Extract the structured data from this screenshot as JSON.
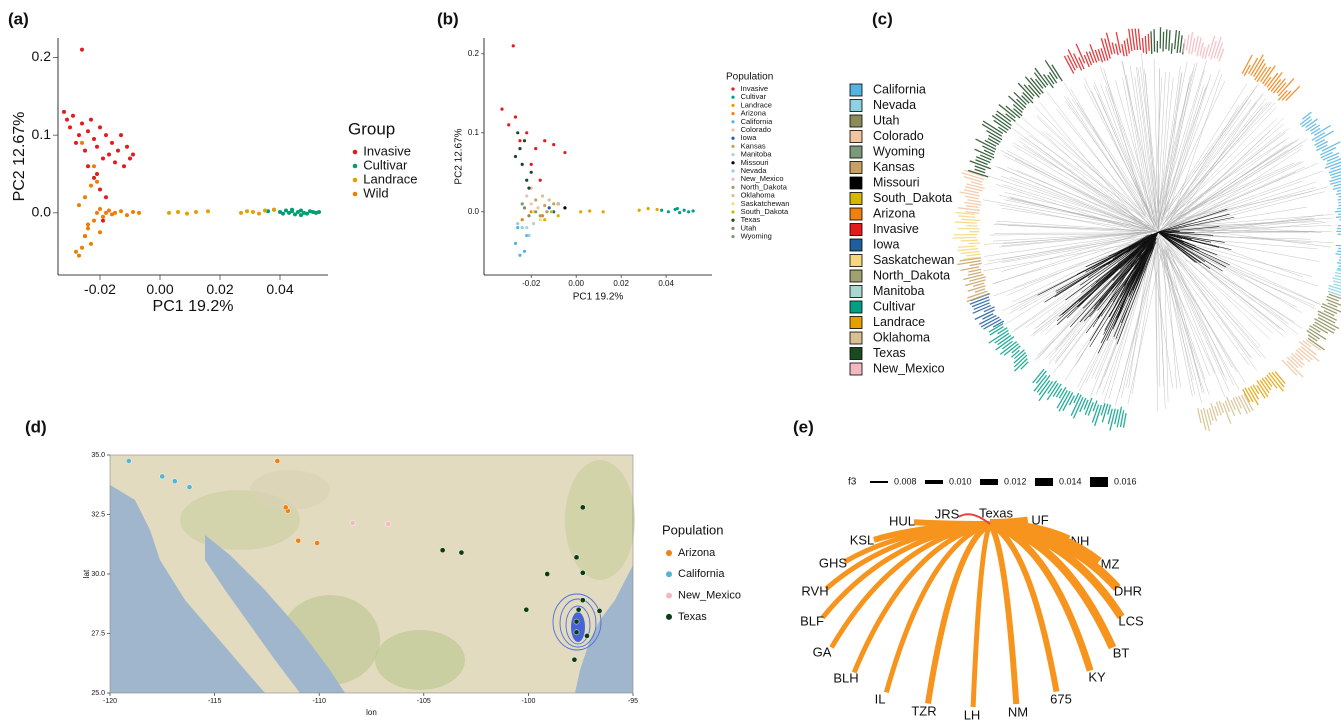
{
  "chart_data": [
    {
      "panel_label": "(a)",
      "type": "scatter",
      "xlabel": "PC1 19.2%",
      "ylabel": "PC2 12.67%",
      "xlim": [
        -0.034,
        0.056
      ],
      "ylim": [
        -0.08,
        0.225
      ],
      "xticks": [
        -0.02,
        {
          "value": 0,
          "label": "0.00"
        },
        0.02,
        0.04
      ],
      "yticks": [
        {
          "value": 0,
          "label": "0.0"
        },
        0.1,
        0.2
      ],
      "legend_title": "Group",
      "series": [
        {
          "name": "Invasive",
          "color": "#e41a1c",
          "x": [
            -0.032,
            -0.031,
            -0.03,
            -0.029,
            -0.028,
            -0.027,
            -0.026,
            -0.025,
            -0.024,
            -0.023,
            -0.022,
            -0.021,
            -0.02,
            -0.019,
            -0.018,
            -0.017,
            -0.016,
            -0.015,
            -0.014,
            -0.013,
            -0.012,
            -0.011,
            -0.01,
            -0.009,
            -0.026,
            -0.024,
            -0.022,
            -0.02,
            -0.019,
            -0.025,
            -0.018,
            -0.021
          ],
          "y": [
            0.13,
            0.12,
            0.11,
            0.125,
            0.09,
            0.1,
            0.115,
            0.08,
            0.105,
            0.12,
            0.095,
            0.085,
            0.11,
            0.07,
            0.1,
            0.075,
            0.09,
            0.065,
            0.08,
            0.1,
            0.06,
            0.085,
            0.07,
            0.075,
            0.21,
            0.06,
            0.045,
            0.03,
            -0.01,
            -0.03,
            0.02,
            0.05
          ]
        },
        {
          "name": "Cultivar",
          "color": "#009e73",
          "x": [
            0.036,
            0.038,
            0.04,
            0.041,
            0.042,
            0.043,
            0.044,
            0.045,
            0.046,
            0.047,
            0.048,
            0.049,
            0.05,
            0.051,
            0.052,
            0.053,
            0.044,
            0.047
          ],
          "y": [
            0.002,
            0.004,
            0.001,
            -0.001,
            0.003,
            0.0,
            0.002,
            -0.002,
            0.001,
            0.003,
            0.0,
            -0.001,
            0.002,
            0.001,
            0.0,
            0.001,
            0.004,
            -0.003
          ]
        },
        {
          "name": "Landrace",
          "color": "#e69f00",
          "x": [
            0.003,
            0.006,
            0.009,
            0.012,
            0.016,
            0.027,
            0.029,
            0.031,
            0.033,
            0.035,
            0.038
          ],
          "y": [
            0.0,
            0.001,
            -0.001,
            0.001,
            0.002,
            0.0,
            0.002,
            0.001,
            -0.001,
            0.003,
            0.004
          ]
        },
        {
          "name": "Wild",
          "color": "#f07c00",
          "x": [
            -0.028,
            -0.027,
            -0.026,
            -0.025,
            -0.024,
            -0.023,
            -0.022,
            -0.021,
            -0.02,
            -0.019,
            -0.018,
            -0.017,
            -0.016,
            -0.015,
            -0.013,
            -0.011,
            -0.009,
            -0.007,
            -0.025,
            -0.023,
            -0.021,
            -0.027,
            -0.024,
            -0.02,
            -0.022,
            -0.026
          ],
          "y": [
            -0.05,
            -0.055,
            -0.045,
            -0.03,
            -0.02,
            -0.04,
            -0.01,
            0.0,
            0.005,
            -0.005,
            0.0,
            0.003,
            -0.002,
            0.0,
            0.002,
            -0.003,
            0.001,
            0.0,
            0.02,
            0.035,
            0.04,
            0.01,
            -0.015,
            -0.025,
            0.06,
            0.09
          ]
        }
      ]
    },
    {
      "panel_label": "(b)",
      "type": "scatter",
      "xlabel": "PC1 19.2%",
      "ylabel": "PC2 12.67%",
      "xlim": [
        -0.041,
        0.0604
      ],
      "ylim": [
        -0.08,
        0.22
      ],
      "xticks": [
        -0.02,
        {
          "value": 0,
          "label": "0.00"
        },
        0.02,
        0.04
      ],
      "yticks": [
        {
          "value": 0,
          "label": "0.0"
        },
        0.1,
        0.2
      ],
      "legend_title": "Population",
      "series": [
        {
          "name": "Invasive",
          "color": "#e41a1c",
          "x": [
            -0.033,
            -0.03,
            -0.027,
            -0.025,
            -0.022,
            -0.018,
            -0.014,
            -0.01,
            -0.005,
            -0.028,
            -0.02,
            -0.016
          ],
          "y": [
            0.13,
            0.11,
            0.12,
            0.09,
            0.1,
            0.08,
            0.09,
            0.085,
            0.075,
            0.21,
            0.06,
            0.04
          ]
        },
        {
          "name": "Cultivar",
          "color": "#00a087",
          "x": [
            0.038,
            0.041,
            0.044,
            0.046,
            0.048,
            0.05,
            0.052,
            0.045
          ],
          "y": [
            0.002,
            0.0,
            0.003,
            -0.001,
            0.002,
            0.0,
            0.001,
            0.004
          ]
        },
        {
          "name": "Landrace",
          "color": "#e6a000",
          "x": [
            0.002,
            0.006,
            0.012,
            0.028,
            0.032,
            0.036
          ],
          "y": [
            0.0,
            0.001,
            0.0,
            0.002,
            0.004,
            0.003
          ]
        },
        {
          "name": "Arizona",
          "color": "#f08010",
          "x": [
            -0.024,
            -0.02,
            -0.015
          ],
          "y": [
            -0.01,
            0.0,
            -0.005
          ]
        },
        {
          "name": "California",
          "color": "#56b4e0",
          "x": [
            -0.027,
            -0.025,
            -0.023,
            -0.026,
            -0.022
          ],
          "y": [
            -0.04,
            -0.055,
            -0.05,
            -0.02,
            -0.03
          ]
        },
        {
          "name": "Colorado",
          "color": "#f2c4a0",
          "x": [
            -0.02,
            -0.017
          ],
          "y": [
            0.01,
            0.005
          ]
        },
        {
          "name": "Iowa",
          "color": "#1f5fa0",
          "x": [
            -0.012,
            -0.01
          ],
          "y": [
            0.005,
            0.0
          ]
        },
        {
          "name": "Kansas",
          "color": "#c8a064",
          "x": [
            -0.018,
            -0.014,
            -0.01
          ],
          "y": [
            0.015,
            0.008,
            0.01
          ]
        },
        {
          "name": "Manitoba",
          "color": "#a8d8d0",
          "x": [
            -0.022,
            -0.019
          ],
          "y": [
            -0.02,
            -0.015
          ]
        },
        {
          "name": "Missouri",
          "color": "#000000",
          "x": [
            -0.008,
            -0.005
          ],
          "y": [
            0.01,
            0.005
          ]
        },
        {
          "name": "Nevada",
          "color": "#8ed1e3",
          "x": [
            -0.026,
            -0.024,
            -0.021
          ],
          "y": [
            -0.015,
            -0.02,
            -0.03
          ]
        },
        {
          "name": "New_Mexico",
          "color": "#f4b8c0",
          "x": [
            -0.022,
            -0.02
          ],
          "y": [
            0.02,
            0.03
          ]
        },
        {
          "name": "North_Dakota",
          "color": "#a0a070",
          "x": [
            -0.016,
            -0.013
          ],
          "y": [
            -0.005,
            0.0
          ]
        },
        {
          "name": "Oklahoma",
          "color": "#d8c090",
          "x": [
            -0.015,
            -0.012,
            -0.008
          ],
          "y": [
            0.02,
            0.015,
            0.01
          ]
        },
        {
          "name": "Saskatchewan",
          "color": "#f5d87a",
          "x": [
            -0.019,
            -0.016
          ],
          "y": [
            0.0,
            -0.01
          ]
        },
        {
          "name": "South_Dakota",
          "color": "#d4b800",
          "x": [
            -0.014,
            -0.011,
            -0.008
          ],
          "y": [
            -0.01,
            0.0,
            -0.005
          ]
        },
        {
          "name": "Texas",
          "color": "#1a4a20",
          "x": [
            -0.027,
            -0.026,
            -0.025,
            -0.024,
            -0.023,
            -0.022,
            -0.021,
            -0.02
          ],
          "y": [
            0.07,
            0.1,
            0.08,
            0.06,
            0.09,
            0.04,
            0.03,
            0.05
          ]
        },
        {
          "name": "Utah",
          "color": "#8c8c5a",
          "x": [
            -0.023,
            -0.021
          ],
          "y": [
            0.005,
            -0.005
          ]
        },
        {
          "name": "Wyoming",
          "color": "#7a9a7a",
          "x": [
            -0.024,
            -0.018
          ],
          "y": [
            0.01,
            0.0
          ]
        }
      ]
    },
    {
      "panel_label": "(c)",
      "type": "tree",
      "series": [
        {
          "name": "California",
          "color": "#56b4e0"
        },
        {
          "name": "Nevada",
          "color": "#8ed1e3"
        },
        {
          "name": "Utah",
          "color": "#8c8c5a"
        },
        {
          "name": "Colorado",
          "color": "#f2c4a0"
        },
        {
          "name": "Wyoming",
          "color": "#7a9a7a"
        },
        {
          "name": "Kansas",
          "color": "#c8a064"
        },
        {
          "name": "Missouri",
          "color": "#000000"
        },
        {
          "name": "South_Dakota",
          "color": "#d4b800"
        },
        {
          "name": "Arizona",
          "color": "#f08010"
        },
        {
          "name": "Invasive",
          "color": "#e41a1c"
        },
        {
          "name": "Iowa",
          "color": "#1f5fa0"
        },
        {
          "name": "Saskatchewan",
          "color": "#f5d87a"
        },
        {
          "name": "North_Dakota",
          "color": "#a0a070"
        },
        {
          "name": "Manitoba",
          "color": "#a8d8d0"
        },
        {
          "name": "Cultivar",
          "color": "#00a087"
        },
        {
          "name": "Landrace",
          "color": "#e6a000"
        },
        {
          "name": "Oklahoma",
          "color": "#d8c090"
        },
        {
          "name": "Texas",
          "color": "#1a4a20"
        },
        {
          "name": "New_Mexico",
          "color": "#f4b8c0"
        }
      ]
    },
    {
      "panel_label": "(d)",
      "type": "map",
      "xlabel": "lon",
      "ylabel": "lat",
      "xlim": [
        -120,
        -95
      ],
      "ylim": [
        25,
        35
      ],
      "xticks": [
        -120,
        -115,
        -110,
        -105,
        -100,
        -95
      ],
      "yticks": [
        {
          "value": 25,
          "label": "25.0"
        },
        27.5,
        {
          "value": 30,
          "label": "30.0"
        },
        32.5,
        {
          "value": 35,
          "label": "35.0"
        }
      ],
      "legend_title": "Population",
      "series": [
        {
          "name": "Arizona",
          "color": "#f08010",
          "x": [
            -112.0,
            -111.5,
            -111.0,
            -110.1,
            -111.6
          ],
          "y": [
            34.75,
            32.65,
            31.4,
            31.3,
            32.8
          ]
        },
        {
          "name": "California",
          "color": "#56b4d0",
          "x": [
            -119.1,
            -116.9,
            -116.2,
            -117.5
          ],
          "y": [
            34.75,
            33.9,
            33.65,
            34.1
          ]
        },
        {
          "name": "New_Mexico",
          "color": "#f4b8c0",
          "x": [
            -108.4,
            -106.7
          ],
          "y": [
            32.15,
            32.1
          ]
        },
        {
          "name": "Texas",
          "color": "#0b3d12",
          "x": [
            -97.4,
            -104.1,
            -103.2,
            -99.1,
            -97.7,
            -100.1,
            -97.4,
            -97.4,
            -97.7,
            -97.2,
            -96.6,
            -97.8,
            -97.7,
            -97.6
          ],
          "y": [
            32.8,
            31.0,
            30.9,
            30.0,
            30.7,
            28.5,
            30.05,
            28.9,
            28.0,
            27.4,
            28.45,
            26.4,
            27.55,
            28.5
          ]
        }
      ]
    },
    {
      "panel_label": "(e)",
      "type": "network",
      "legend_title": "f3",
      "legend_values": [
        0.008,
        {
          "value": 0.01,
          "label": "0.010"
        },
        0.012,
        0.014,
        0.016
      ],
      "hub": "Texas",
      "edges": [
        {
          "target": "UF",
          "f3": 0.016,
          "color": "#f7941d"
        },
        {
          "target": "NH",
          "f3": 0.016,
          "color": "#f7941d"
        },
        {
          "target": "MZ",
          "f3": 0.016,
          "color": "#f7941d"
        },
        {
          "target": "DHR",
          "f3": 0.015,
          "color": "#f7941d"
        },
        {
          "target": "LCS",
          "f3": 0.014,
          "color": "#f7941d"
        },
        {
          "target": "BT",
          "f3": 0.014,
          "color": "#f7941d"
        },
        {
          "target": "KY",
          "f3": 0.013,
          "color": "#f7941d"
        },
        {
          "target": "675",
          "f3": 0.012,
          "color": "#f7941d"
        },
        {
          "target": "NM",
          "f3": 0.012,
          "color": "#f7941d"
        },
        {
          "target": "LH",
          "f3": 0.011,
          "color": "#f7941d"
        },
        {
          "target": "TZR",
          "f3": 0.012,
          "color": "#f7941d"
        },
        {
          "target": "IL",
          "f3": 0.011,
          "color": "#f7941d"
        },
        {
          "target": "BLH",
          "f3": 0.011,
          "color": "#f7941d"
        },
        {
          "target": "GA",
          "f3": 0.011,
          "color": "#f7941d"
        },
        {
          "target": "BLF",
          "f3": 0.011,
          "color": "#f7941d"
        },
        {
          "target": "RVH",
          "f3": 0.011,
          "color": "#f7941d"
        },
        {
          "target": "GHS",
          "f3": 0.011,
          "color": "#f7941d"
        },
        {
          "target": "KSL",
          "f3": 0.012,
          "color": "#f7941d"
        },
        {
          "target": "HUL",
          "f3": 0.012,
          "color": "#f7941d"
        },
        {
          "target": "JRS",
          "f3": 0.008,
          "color": "#e8453c"
        }
      ]
    }
  ]
}
